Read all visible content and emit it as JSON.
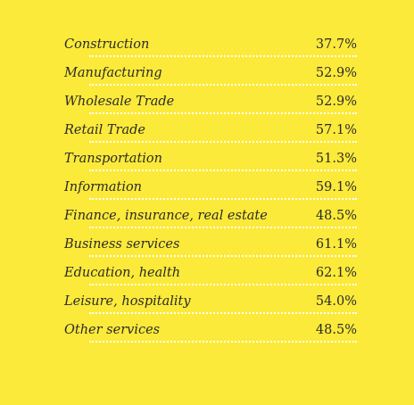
{
  "chart_data": {
    "type": "table",
    "categories": [
      "Construction",
      "Manufacturing",
      "Wholesale Trade",
      "Retail Trade",
      "Transportation",
      "Information",
      "Finance, insurance, real estate",
      "Business services",
      "Education, health",
      "Leisure, hospitality",
      "Other services"
    ],
    "values": [
      37.7,
      52.9,
      52.9,
      57.1,
      51.3,
      59.1,
      48.5,
      61.1,
      62.1,
      54.0,
      48.5
    ],
    "value_labels": [
      "37.7%",
      "52.9%",
      "52.9%",
      "57.1%",
      "51.3%",
      "59.1%",
      "48.5%",
      "61.1%",
      "62.1%",
      "54.0%",
      "48.5%"
    ],
    "unit": "%"
  },
  "colors": {
    "background": "#fcea3a",
    "text": "#2a2a2a",
    "leader": "#ffffff"
  }
}
